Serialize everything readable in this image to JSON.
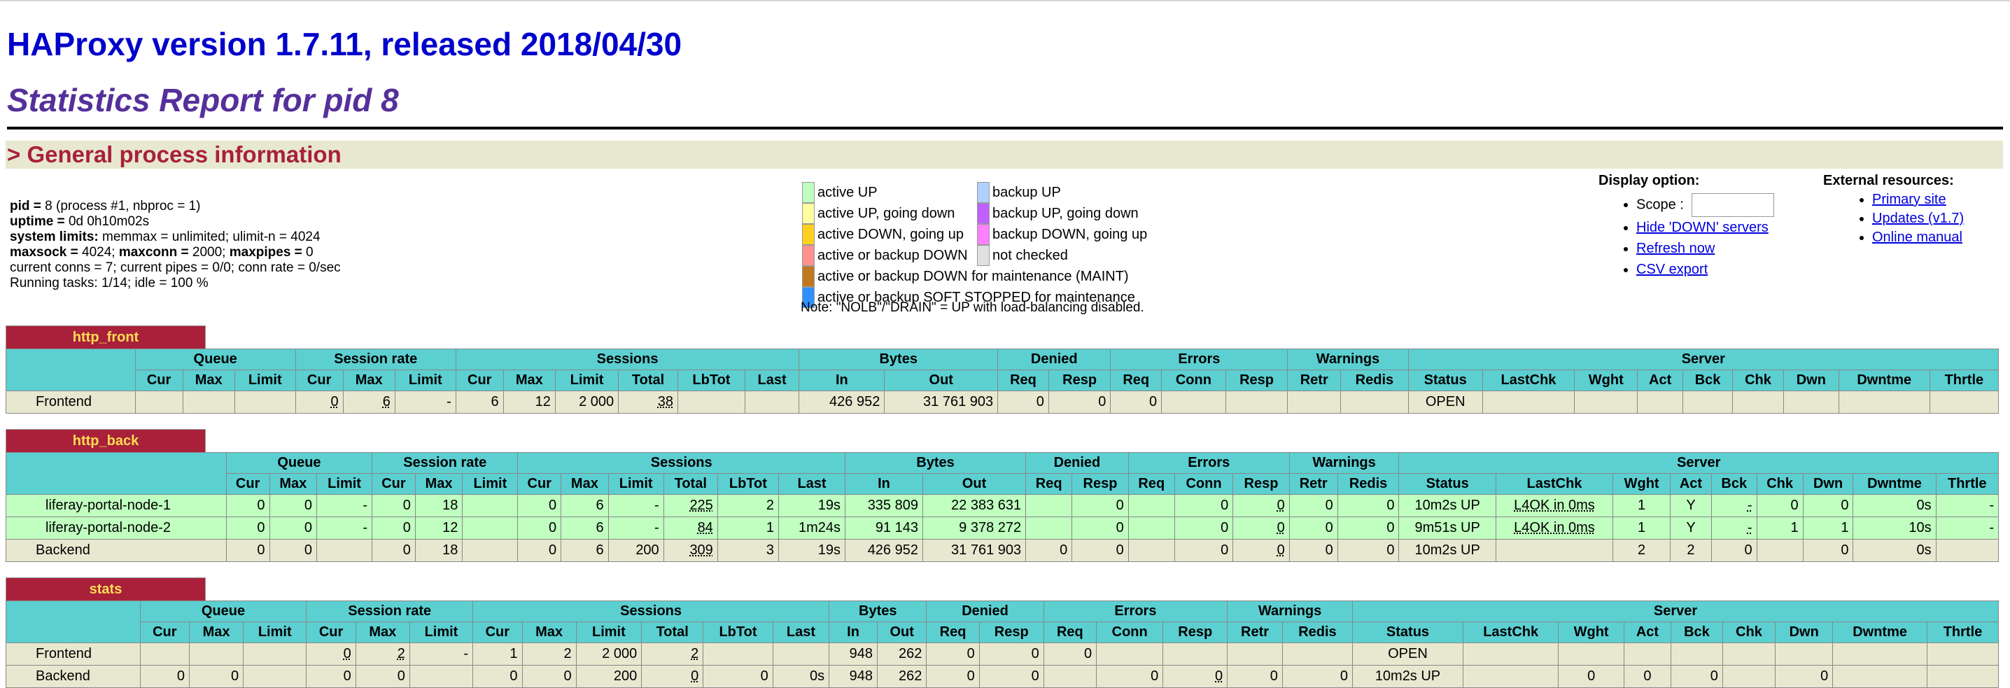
{
  "title": "HAProxy version 1.7.11, released 2018/04/30",
  "subtitle": "Statistics Report for pid 8",
  "section_title": "> General process information",
  "process_info": [
    {
      "label": "pid = ",
      "text": "8 (process #1, nbproc = 1)"
    },
    {
      "label": "uptime = ",
      "text": "0d 0h10m02s"
    },
    {
      "label": "system limits:",
      "text": " memmax = unlimited; ulimit-n = 4024"
    },
    {
      "label": "maxsock = ",
      "text": "4024; ",
      "label2": "maxconn = ",
      "text2": "2000; ",
      "label3": "maxpipes = ",
      "text3": "0"
    },
    {
      "label": "",
      "text": "current conns = 7; current pipes = 0/0; conn rate = 0/sec"
    },
    {
      "label": "",
      "text": "Running tasks: 1/14; idle = 100 %"
    }
  ],
  "legend": {
    "items": [
      {
        "label": "active UP",
        "color": "#c0ffc0"
      },
      {
        "label": "backup UP",
        "color": "#b0d0ff"
      },
      {
        "label": "active UP, going down",
        "color": "#ffffa0"
      },
      {
        "label": "backup UP, going down",
        "color": "#c060ff"
      },
      {
        "label": "active DOWN, going up",
        "color": "#ffd020"
      },
      {
        "label": "backup DOWN, going up",
        "color": "#ff80ff"
      },
      {
        "label": "active or backup DOWN",
        "color": "#ff9090"
      },
      {
        "label": "not checked",
        "color": "#e0e0e0"
      },
      {
        "label": "active or backup DOWN for maintenance (MAINT)",
        "color": "#c07820"
      },
      {
        "label": "active or backup SOFT STOPPED for maintenance",
        "color": "#3090ff"
      }
    ],
    "note": "Note: \"NOLB\"/\"DRAIN\" = UP with load-balancing disabled."
  },
  "display_option": {
    "title": "Display option:",
    "scope_label": "Scope :",
    "links": [
      "Hide 'DOWN' servers",
      "Refresh now",
      "CSV export"
    ]
  },
  "external": {
    "title": "External resources:",
    "links": [
      "Primary site",
      "Updates (v1.7)",
      "Online manual"
    ]
  },
  "groups": [
    "Queue",
    "Session rate",
    "Sessions",
    "Bytes",
    "Denied",
    "Errors",
    "Warnings",
    "Server"
  ],
  "columns": [
    "Cur",
    "Max",
    "Limit",
    "Cur",
    "Max",
    "Limit",
    "Cur",
    "Max",
    "Limit",
    "Total",
    "LbTot",
    "Last",
    "In",
    "Out",
    "Req",
    "Resp",
    "Req",
    "Conn",
    "Resp",
    "Retr",
    "Redis",
    "Status",
    "LastChk",
    "Wght",
    "Act",
    "Bck",
    "Chk",
    "Dwn",
    "Dwntme",
    "Thrtle"
  ],
  "proxies": [
    {
      "name": "http_front",
      "rows": [
        {
          "type": "fe",
          "cells": [
            "Frontend",
            "",
            "",
            "",
            "0",
            "6",
            "-",
            "6",
            "12",
            "2 000",
            "38",
            "",
            "",
            "426 952",
            "31 761 903",
            "0",
            "0",
            "0",
            "",
            "",
            "",
            "",
            "OPEN",
            "",
            "",
            "",
            "",
            "",
            "",
            "",
            ""
          ]
        }
      ]
    },
    {
      "name": "http_back",
      "rows": [
        {
          "type": "up",
          "cells": [
            "liferay-portal-node-1",
            "0",
            "0",
            "-",
            "0",
            "18",
            "",
            "0",
            "6",
            "-",
            "225",
            "2",
            "19s",
            "335 809",
            "22 383 631",
            "",
            "0",
            "",
            "0",
            "0",
            "0",
            "0",
            "10m2s UP",
            "L4OK in 0ms",
            "1",
            "Y",
            "-",
            "0",
            "0",
            "0s",
            "-"
          ]
        },
        {
          "type": "up",
          "cells": [
            "liferay-portal-node-2",
            "0",
            "0",
            "-",
            "0",
            "12",
            "",
            "0",
            "6",
            "-",
            "84",
            "1",
            "1m24s",
            "91 143",
            "9 378 272",
            "",
            "0",
            "",
            "0",
            "0",
            "0",
            "0",
            "9m51s UP",
            "L4OK in 0ms",
            "1",
            "Y",
            "-",
            "1",
            "1",
            "10s",
            "-"
          ]
        },
        {
          "type": "be",
          "cells": [
            "Backend",
            "0",
            "0",
            "",
            "0",
            "18",
            "",
            "0",
            "6",
            "200",
            "309",
            "3",
            "19s",
            "426 952",
            "31 761 903",
            "0",
            "0",
            "",
            "0",
            "0",
            "0",
            "0",
            "10m2s UP",
            "",
            "2",
            "2",
            "0",
            "",
            "0",
            "0s",
            ""
          ]
        }
      ]
    },
    {
      "name": "stats",
      "rows": [
        {
          "type": "fe",
          "cells": [
            "Frontend",
            "",
            "",
            "",
            "0",
            "2",
            "-",
            "1",
            "2",
            "2 000",
            "2",
            "",
            "",
            "948",
            "262",
            "0",
            "0",
            "0",
            "",
            "",
            "",
            "",
            "OPEN",
            "",
            "",
            "",
            "",
            "",
            "",
            "",
            ""
          ]
        },
        {
          "type": "be",
          "cells": [
            "Backend",
            "0",
            "0",
            "",
            "0",
            "0",
            "",
            "0",
            "0",
            "200",
            "0",
            "0",
            "0s",
            "948",
            "262",
            "0",
            "0",
            "",
            "0",
            "0",
            "0",
            "0",
            "10m2s UP",
            "",
            "0",
            "0",
            "0",
            "",
            "0",
            "",
            ""
          ]
        }
      ]
    }
  ]
}
